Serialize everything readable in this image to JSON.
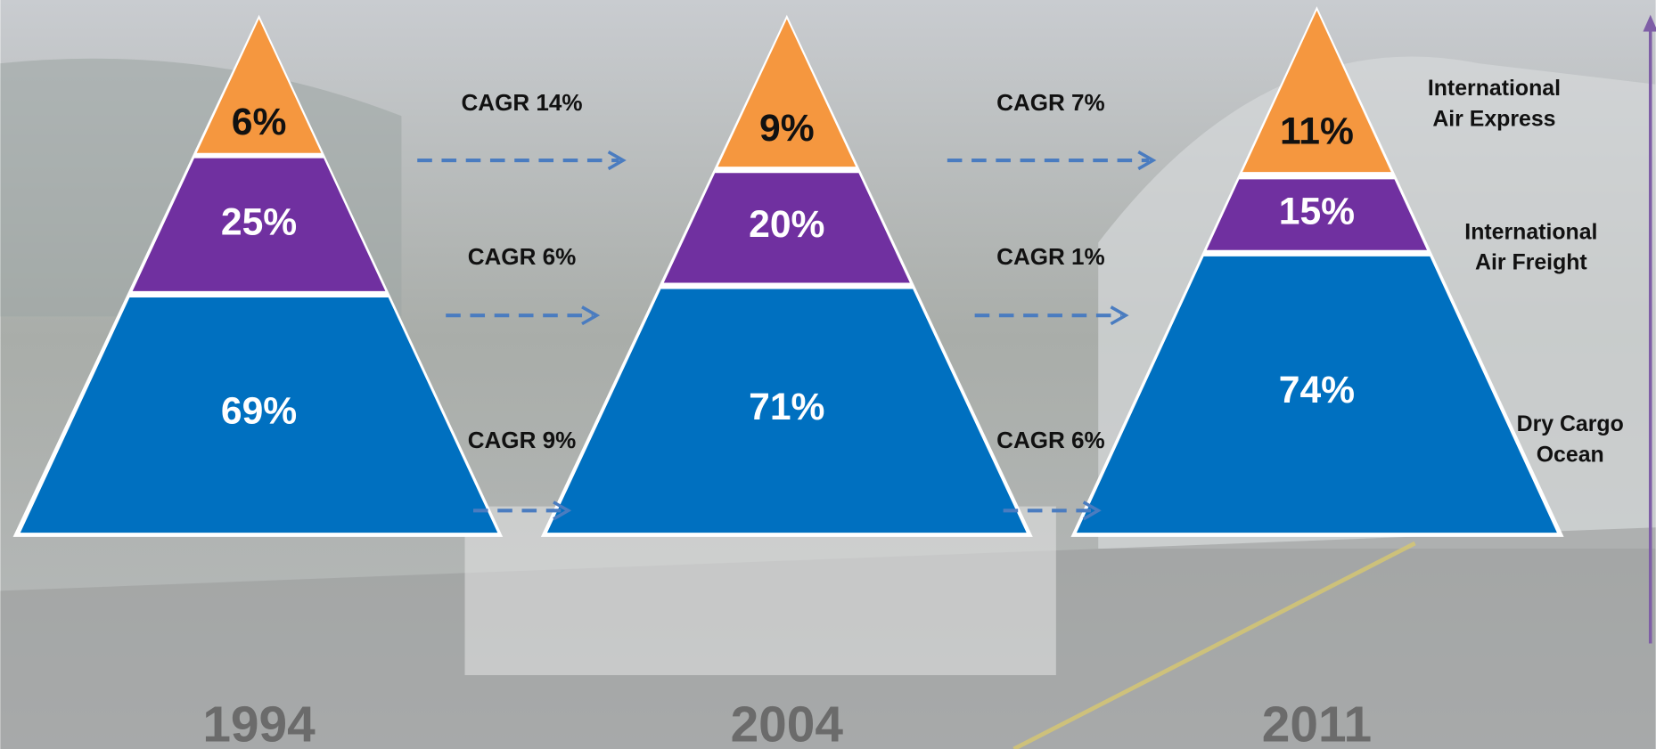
{
  "pyramids": [
    {
      "year": "1994",
      "segments": [
        "6%",
        "25%",
        "69%"
      ]
    },
    {
      "year": "2004",
      "segments": [
        "9%",
        "20%",
        "71%"
      ]
    },
    {
      "year": "2011",
      "segments": [
        "11%",
        "15%",
        "74%"
      ]
    }
  ],
  "transitions": [
    [
      "CAGR 14%",
      "CAGR 6%",
      "CAGR 9%"
    ],
    [
      "CAGR 7%",
      "CAGR 1%",
      "CAGR 6%"
    ]
  ],
  "legend": [
    [
      "International",
      "Air Express"
    ],
    [
      "International",
      "Air Freight"
    ],
    [
      "Dry Cargo",
      "Ocean"
    ]
  ]
}
